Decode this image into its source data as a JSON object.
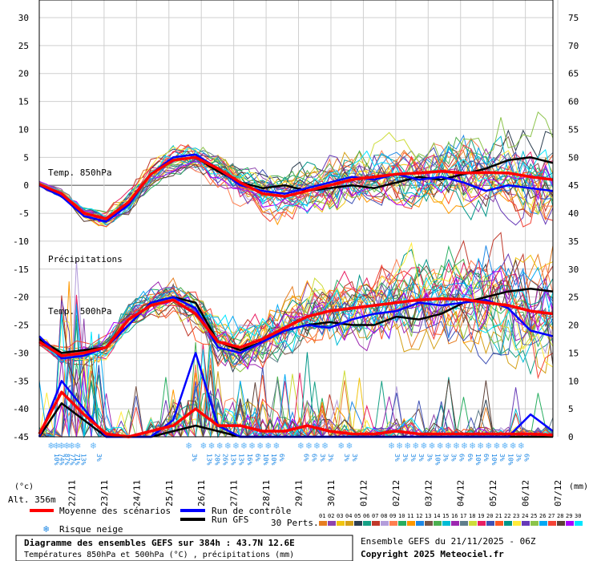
{
  "chart_data": {
    "type": "line",
    "title": "Diagramme des ensembles GEFS sur 384h : 43.7N 12.6E",
    "subtitle": "Températures 850hPa et 500hPa (°C) , précipitations (mm)",
    "run_info": "Ensemble GEFS du 21/11/2025 - 06Z",
    "copyright": "Copyright 2025 Meteociel.fr",
    "altitude_label": "Alt. 356m",
    "left_unit": "(°c)",
    "right_unit": "(mm)",
    "left_axis": {
      "min": -45,
      "max": 30,
      "ticks": [
        "30",
        "25",
        "20",
        "15",
        "10",
        "5",
        "0",
        "-5",
        "-10",
        "-15",
        "-20",
        "-25",
        "-30",
        "-35",
        "-40",
        "-45"
      ]
    },
    "right_axis": {
      "min": 0,
      "max": 75,
      "ticks": [
        "75",
        "70",
        "65",
        "60",
        "55",
        "50",
        "45",
        "40",
        "35",
        "30",
        "25",
        "20",
        "15",
        "10",
        "5",
        "0"
      ]
    },
    "x_tick_labels": [
      "22/11",
      "23/11",
      "24/11",
      "25/11",
      "26/11",
      "27/11",
      "28/11",
      "29/11",
      "30/11",
      "01/12",
      "02/12",
      "03/12",
      "04/12",
      "05/12",
      "06/12",
      "07/12"
    ],
    "annotations": {
      "t850": "Temp. 850hPa",
      "precip": "Précipitations",
      "t500": "Temp. 500hPa"
    },
    "legend": {
      "mean": "Moyenne des scénarios",
      "control": "Run de contrôle",
      "gfs": "Run GFS",
      "snow": "Risque neige",
      "perts_label": "30 Perts.",
      "pert_numbers": [
        "01",
        "02",
        "03",
        "04",
        "05",
        "06",
        "07",
        "08",
        "09",
        "10",
        "11",
        "12",
        "13",
        "14",
        "15",
        "16",
        "17",
        "18",
        "19",
        "20",
        "21",
        "22",
        "23",
        "24",
        "25",
        "26",
        "27",
        "28",
        "29",
        "30"
      ],
      "pert_colors": [
        "#e67e22",
        "#8e44ad",
        "#f1c40f",
        "#d4a017",
        "#2c3e50",
        "#16a085",
        "#c0392b",
        "#b39ddb",
        "#ff7f50",
        "#27ae60",
        "#ff9800",
        "#1e88e5",
        "#795548",
        "#4caf50",
        "#00bcd4",
        "#9c27b0",
        "#607d8b",
        "#cddc39",
        "#e91e63",
        "#3f51b5",
        "#ff5722",
        "#009688",
        "#ffeb3b",
        "#673ab7",
        "#8bc34a",
        "#03a9f4",
        "#f44336",
        "#5d4037",
        "#aa00ff",
        "#00e5ff"
      ]
    },
    "series": [
      {
        "name": "Moyenne des scénarios",
        "color": "#ff0000",
        "t850": [
          0.2,
          -1.5,
          -5,
          -6,
          -3,
          2,
          4.5,
          5,
          3,
          0.5,
          -1.5,
          -2,
          -1,
          0,
          1,
          1.5,
          2,
          2.2,
          2.5,
          2.2,
          2.3,
          2.2,
          1.5,
          1
        ],
        "t500": [
          -28,
          -30.5,
          -30,
          -29,
          -24,
          -21.5,
          -20.5,
          -23,
          -28,
          -29,
          -27.5,
          -25.5,
          -23.5,
          -22.5,
          -22,
          -21.5,
          -21,
          -20.5,
          -20.3,
          -20.4,
          -21,
          -21.5,
          -22.5,
          -23
        ],
        "precip": [
          0.5,
          8,
          4,
          0.5,
          0,
          1,
          2,
          5,
          2,
          2,
          1,
          1,
          2,
          1,
          0.5,
          0.5,
          1,
          0.5,
          0.5,
          0.5,
          0.5,
          0.5,
          0.5,
          0.3
        ]
      },
      {
        "name": "Run de contrôle",
        "color": "#0000ff",
        "t850": [
          0,
          -2,
          -5.5,
          -6.5,
          -3.5,
          2,
          5,
          5.5,
          3,
          0,
          -1,
          -1.5,
          -0.5,
          0.5,
          1.5,
          1,
          2,
          1,
          1.5,
          0.5,
          -1,
          0,
          -0.5,
          -1
        ],
        "t500": [
          -27,
          -31,
          -30.5,
          -29,
          -25,
          -21,
          -20,
          -22,
          -29,
          -30,
          -28,
          -26,
          -25,
          -25.5,
          -24,
          -23,
          -22.5,
          -21,
          -21.5,
          -21,
          -20.5,
          -22,
          -26,
          -27
        ],
        "precip": [
          0,
          10,
          5,
          0,
          0,
          0,
          3,
          15,
          2,
          0,
          0,
          0,
          0,
          0,
          0,
          0,
          0,
          0,
          0,
          0,
          0,
          0,
          4,
          1
        ]
      },
      {
        "name": "Run GFS",
        "color": "#000000",
        "t850": [
          0,
          -2,
          -5,
          -6,
          -3,
          2,
          4.5,
          5,
          2.5,
          0.5,
          -0.5,
          0,
          -1,
          -0.5,
          0,
          -0.5,
          0.5,
          1.5,
          1,
          2,
          3,
          4.5,
          5,
          4
        ],
        "t500": [
          -27.5,
          -30,
          -29.5,
          -29,
          -25,
          -21,
          -20,
          -21,
          -28,
          -29.5,
          -28,
          -26,
          -25,
          -24.5,
          -25,
          -25,
          -23.5,
          -24,
          -23,
          -21,
          -20,
          -19,
          -18.5,
          -19
        ],
        "precip": [
          0,
          6,
          3,
          0,
          0,
          0,
          1,
          2,
          1,
          0,
          0,
          0,
          0,
          0,
          0,
          0,
          0,
          0,
          0,
          0,
          0,
          0,
          0,
          0
        ]
      }
    ],
    "snow_risk": [
      {
        "day": 0.4,
        "pct": "10%"
      },
      {
        "day": 0.56,
        "pct": "74%"
      },
      {
        "day": 0.72,
        "pct": "87%"
      },
      {
        "day": 0.88,
        "pct": "77%"
      },
      {
        "day": 1.04,
        "pct": "71%"
      },
      {
        "day": 1.22,
        "pct": "13%"
      },
      {
        "day": 1.7,
        "pct": "3%"
      },
      {
        "day": 4.65,
        "pct": "3%"
      },
      {
        "day": 5.1,
        "pct": "13%"
      },
      {
        "day": 5.35,
        "pct": "20%"
      },
      {
        "day": 5.6,
        "pct": "26%"
      },
      {
        "day": 5.85,
        "pct": "13%"
      },
      {
        "day": 6.1,
        "pct": "13%"
      },
      {
        "day": 6.35,
        "pct": "16%"
      },
      {
        "day": 6.6,
        "pct": "6%"
      },
      {
        "day": 6.85,
        "pct": "10%"
      },
      {
        "day": 7.1,
        "pct": "10%"
      },
      {
        "day": 7.35,
        "pct": "6%"
      },
      {
        "day": 8.1,
        "pct": "6%"
      },
      {
        "day": 8.35,
        "pct": "6%"
      },
      {
        "day": 8.6,
        "pct": "3%"
      },
      {
        "day": 8.85,
        "pct": "3%"
      },
      {
        "day": 9.35,
        "pct": "3%"
      },
      {
        "day": 9.6,
        "pct": "3%"
      },
      {
        "day": 10.9,
        "pct": "3%"
      },
      {
        "day": 11.15,
        "pct": "3%"
      },
      {
        "day": 11.4,
        "pct": "3%"
      },
      {
        "day": 11.65,
        "pct": "3%"
      },
      {
        "day": 11.9,
        "pct": "3%"
      },
      {
        "day": 12.15,
        "pct": "10%"
      },
      {
        "day": 12.4,
        "pct": "3%"
      },
      {
        "day": 12.65,
        "pct": "3%"
      },
      {
        "day": 12.9,
        "pct": "6%"
      },
      {
        "day": 13.15,
        "pct": "6%"
      },
      {
        "day": 13.4,
        "pct": "10%"
      },
      {
        "day": 13.65,
        "pct": "6%"
      },
      {
        "day": 13.9,
        "pct": "10%"
      },
      {
        "day": 14.15,
        "pct": "3%"
      },
      {
        "day": 14.4,
        "pct": "10%"
      },
      {
        "day": 14.65,
        "pct": "3%"
      },
      {
        "day": 14.9,
        "pct": "6%"
      }
    ]
  }
}
